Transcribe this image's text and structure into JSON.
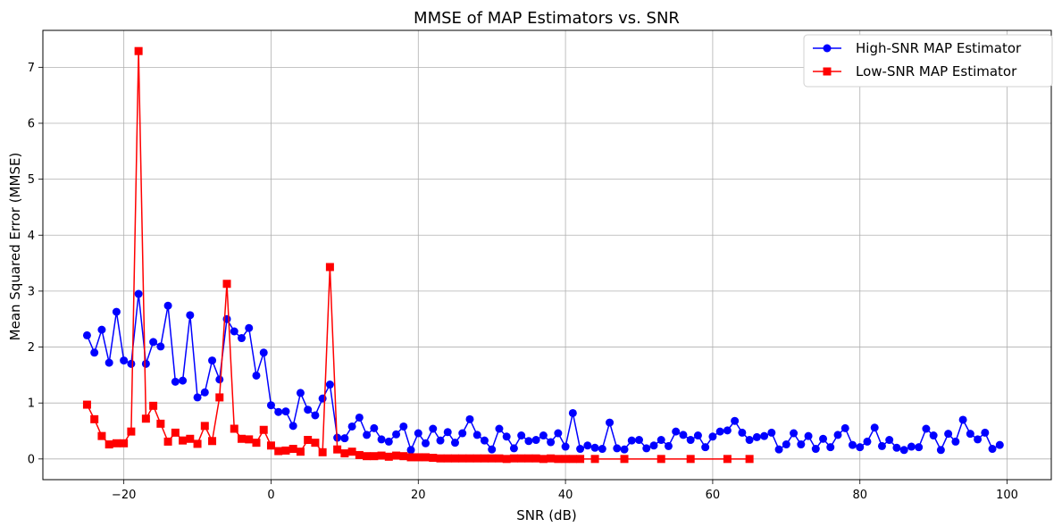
{
  "chart_data": {
    "type": "line",
    "title": "MMSE of MAP Estimators vs. SNR",
    "xlabel": "SNR (dB)",
    "ylabel": "Mean Squared Error (MMSE)",
    "xlim": [
      -31,
      106
    ],
    "ylim": [
      -0.37,
      7.66
    ],
    "xticks": [
      -20,
      0,
      20,
      40,
      60,
      80,
      100
    ],
    "yticks": [
      0,
      1,
      2,
      3,
      4,
      5,
      6,
      7
    ],
    "grid": true,
    "legend_position": "top-right",
    "series": [
      {
        "name": "High-SNR MAP Estimator",
        "color": "#0000ff",
        "marker": "circle",
        "x": [
          -25,
          -24,
          -23,
          -22,
          -21,
          -20,
          -19,
          -18,
          -17,
          -16,
          -15,
          -14,
          -13,
          -12,
          -11,
          -10,
          -9,
          -8,
          -7,
          -6,
          -5,
          -4,
          -3,
          -2,
          -1,
          0,
          1,
          2,
          3,
          4,
          5,
          6,
          7,
          8,
          9,
          10,
          11,
          12,
          13,
          14,
          15,
          16,
          17,
          18,
          19,
          20,
          21,
          22,
          23,
          24,
          25,
          26,
          27,
          28,
          29,
          30,
          31,
          32,
          33,
          34,
          35,
          36,
          37,
          38,
          39,
          40,
          41,
          42,
          43,
          44,
          45,
          46,
          47,
          48,
          49,
          50,
          51,
          52,
          53,
          54,
          55,
          56,
          57,
          58,
          59,
          60,
          61,
          62,
          63,
          64,
          65,
          66,
          67,
          68,
          69,
          70,
          71,
          72,
          73,
          74,
          75,
          76,
          77,
          78,
          79,
          80,
          81,
          82,
          83,
          84,
          85,
          86,
          87,
          88,
          89,
          90,
          91,
          92,
          93,
          94,
          95,
          96,
          97,
          98,
          99
        ],
        "y": [
          2.21,
          1.9,
          2.31,
          1.72,
          2.63,
          1.76,
          1.7,
          2.95,
          1.7,
          2.09,
          2.01,
          2.74,
          1.38,
          1.4,
          2.57,
          1.1,
          1.19,
          1.76,
          1.42,
          2.5,
          2.28,
          2.16,
          2.34,
          1.49,
          1.9,
          0.96,
          0.84,
          0.85,
          0.59,
          1.18,
          0.88,
          0.78,
          1.08,
          1.33,
          0.38,
          0.37,
          0.58,
          0.74,
          0.43,
          0.55,
          0.35,
          0.31,
          0.44,
          0.58,
          0.16,
          0.46,
          0.28,
          0.54,
          0.33,
          0.48,
          0.29,
          0.46,
          0.71,
          0.43,
          0.33,
          0.17,
          0.54,
          0.4,
          0.19,
          0.42,
          0.32,
          0.34,
          0.42,
          0.3,
          0.46,
          0.22,
          0.82,
          0.18,
          0.24,
          0.2,
          0.18,
          0.65,
          0.19,
          0.17,
          0.33,
          0.34,
          0.19,
          0.24,
          0.34,
          0.23,
          0.49,
          0.43,
          0.34,
          0.42,
          0.21,
          0.4,
          0.49,
          0.51,
          0.68,
          0.47,
          0.34,
          0.39,
          0.41,
          0.47,
          0.17,
          0.26,
          0.46,
          0.26,
          0.41,
          0.18,
          0.36,
          0.21,
          0.43,
          0.55,
          0.25,
          0.21,
          0.31,
          0.56,
          0.23,
          0.34,
          0.2,
          0.16,
          0.22,
          0.21,
          0.54,
          0.42,
          0.16,
          0.45,
          0.31,
          0.7,
          0.45,
          0.35,
          0.47,
          0.18,
          0.25
        ]
      },
      {
        "name": "Low-SNR MAP Estimator",
        "color": "#ff0000",
        "marker": "square",
        "x": [
          -25,
          -24,
          -23,
          -22,
          -21,
          -20,
          -19,
          -18,
          -17,
          -16,
          -15,
          -14,
          -13,
          -12,
          -11,
          -10,
          -9,
          -8,
          -7,
          -6,
          -5,
          -4,
          -3,
          -2,
          -1,
          0,
          1,
          2,
          3,
          4,
          5,
          6,
          7,
          8,
          9,
          10,
          11,
          12,
          13,
          14,
          15,
          16,
          17,
          18,
          19,
          20,
          21,
          22,
          23,
          24,
          25,
          26,
          27,
          28,
          29,
          30,
          31,
          32,
          33,
          34,
          35,
          36,
          37,
          38,
          39,
          40,
          41,
          42,
          44,
          48,
          53,
          57,
          62,
          65
        ],
        "y": [
          0.97,
          0.71,
          0.41,
          0.26,
          0.28,
          0.28,
          0.49,
          7.29,
          0.72,
          0.95,
          0.63,
          0.31,
          0.47,
          0.33,
          0.36,
          0.27,
          0.59,
          0.32,
          1.1,
          3.13,
          0.54,
          0.36,
          0.35,
          0.29,
          0.52,
          0.24,
          0.14,
          0.15,
          0.18,
          0.13,
          0.34,
          0.29,
          0.12,
          3.43,
          0.17,
          0.1,
          0.13,
          0.07,
          0.05,
          0.05,
          0.06,
          0.04,
          0.06,
          0.05,
          0.03,
          0.03,
          0.03,
          0.02,
          0.01,
          0.01,
          0.01,
          0.01,
          0.01,
          0.01,
          0.01,
          0.01,
          0.01,
          0.0,
          0.01,
          0.01,
          0.01,
          0.01,
          0.0,
          0.01,
          0.0,
          0.0,
          0.0,
          0.0,
          0.0,
          0.0,
          0.0,
          0.0,
          0.0,
          0.0
        ]
      }
    ]
  }
}
